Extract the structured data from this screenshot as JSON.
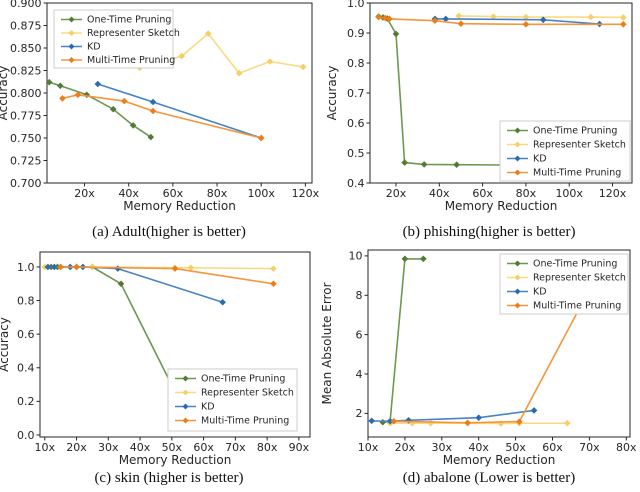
{
  "colors": {
    "green": {
      "line": "#6e9850",
      "marker": "#527c36"
    },
    "yellow": {
      "line": "#fada80",
      "marker": "#f6cf66"
    },
    "blue": {
      "line": "#4684c4",
      "marker": "#2a6cac"
    },
    "orange": {
      "line": "#f5953c",
      "marker": "#ee7d18"
    },
    "spine": "#262626",
    "legend_border": "#cccccc",
    "text": "#262626"
  },
  "legend_labels": [
    "One-Time Pruning",
    "Representer Sketch",
    "KD",
    "Multi-Time Pruning"
  ],
  "chart_data": [
    {
      "id": "a",
      "type": "line",
      "caption": "(a) Adult(higher is better)",
      "xlabel": "Memory Reduction",
      "ylabel": "Accuracy",
      "xlim": [
        3,
        123
      ],
      "ylim": [
        0.7,
        0.9
      ],
      "grid": false,
      "legend_pos": "upper left",
      "xticks": {
        "values": [
          20,
          40,
          60,
          80,
          100,
          120
        ],
        "labels": [
          "20x",
          "40x",
          "60x",
          "80x",
          "100x",
          "120x"
        ]
      },
      "yticks": {
        "values": [
          0.9,
          0.875,
          0.85,
          0.825,
          0.8,
          0.775,
          0.75,
          0.725,
          0.7
        ],
        "labels": [
          "0.900",
          "0.875",
          "0.850",
          "0.825",
          "0.800",
          "0.775",
          "0.750",
          "0.725",
          "0.700"
        ]
      },
      "series": [
        {
          "name": "One-Time Pruning",
          "color": "green",
          "x": [
            4,
            9,
            21,
            33,
            42,
            50
          ],
          "y": [
            0.812,
            0.808,
            0.798,
            0.782,
            0.764,
            0.751
          ]
        },
        {
          "name": "Representer Sketch",
          "color": "yellow",
          "x": [
            45,
            64,
            76,
            90,
            104,
            119
          ],
          "y": [
            0.828,
            0.841,
            0.866,
            0.822,
            0.835,
            0.829
          ]
        },
        {
          "name": "KD",
          "color": "blue",
          "x": [
            26,
            51,
            100
          ],
          "y": [
            0.81,
            0.79,
            0.75
          ]
        },
        {
          "name": "Multi-Time Pruning",
          "color": "orange",
          "x": [
            10,
            17,
            38,
            51,
            100
          ],
          "y": [
            0.794,
            0.798,
            0.791,
            0.78,
            0.75
          ]
        }
      ]
    },
    {
      "id": "b",
      "type": "line",
      "caption": "(b) phishing(higher is better)",
      "xlabel": "Memory Reduction",
      "ylabel": "Accuracy",
      "xlim": [
        8,
        129
      ],
      "ylim": [
        0.4,
        1.0
      ],
      "grid": false,
      "legend_pos": "lower right",
      "xticks": {
        "values": [
          20,
          40,
          60,
          80,
          100,
          120
        ],
        "labels": [
          "20x",
          "40x",
          "60x",
          "80x",
          "100x",
          "120x"
        ]
      },
      "yticks": {
        "values": [
          1.0,
          0.9,
          0.8,
          0.7,
          0.6,
          0.5,
          0.4
        ],
        "labels": [
          "1.0",
          "0.9",
          "0.8",
          "0.7",
          "0.6",
          "0.5",
          "0.4"
        ]
      },
      "series": [
        {
          "name": "One-Time Pruning",
          "color": "green",
          "x": [
            12,
            14,
            16,
            20,
            24,
            33,
            48,
            70
          ],
          "y": [
            0.955,
            0.952,
            0.948,
            0.897,
            0.468,
            0.462,
            0.461,
            0.46
          ]
        },
        {
          "name": "Representer Sketch",
          "color": "yellow",
          "x": [
            49,
            65,
            80,
            110,
            125
          ],
          "y": [
            0.957,
            0.955,
            0.953,
            0.953,
            0.952
          ]
        },
        {
          "name": "KD",
          "color": "blue",
          "x": [
            38,
            43,
            88,
            114
          ],
          "y": [
            0.947,
            0.947,
            0.944,
            0.93
          ]
        },
        {
          "name": "Multi-Time Pruning",
          "color": "orange",
          "x": [
            12,
            15,
            17,
            38,
            50,
            80,
            125
          ],
          "y": [
            0.953,
            0.95,
            0.947,
            0.941,
            0.931,
            0.929,
            0.929
          ]
        }
      ]
    },
    {
      "id": "c",
      "type": "line",
      "caption": "(c) skin (higher is better)",
      "xlabel": "Memory Reduction",
      "ylabel": "Accuracy",
      "xlim": [
        8.5,
        93.5
      ],
      "ylim": [
        -0.012,
        1.089
      ],
      "grid": false,
      "legend_pos": "lower right",
      "xticks": {
        "values": [
          10,
          20,
          30,
          40,
          50,
          60,
          70,
          80,
          90
        ],
        "labels": [
          "10x",
          "20x",
          "30x",
          "40x",
          "50x",
          "60x",
          "70x",
          "80x",
          "90x"
        ]
      },
      "yticks": {
        "values": [
          1.0,
          0.8,
          0.6,
          0.4,
          0.2,
          0.0
        ],
        "labels": [
          "1.0",
          "0.8",
          "0.6",
          "0.4",
          "0.2",
          "0.0"
        ]
      },
      "series": [
        {
          "name": "One-Time Pruning",
          "color": "green",
          "x": [
            12,
            14,
            20,
            25,
            34,
            52
          ],
          "y": [
            1.0,
            1.0,
            1.0,
            1.0,
            0.9,
            0.22
          ]
        },
        {
          "name": "Representer Sketch",
          "color": "yellow",
          "x": [
            10,
            15,
            25,
            51,
            56,
            82
          ],
          "y": [
            1.0,
            1.0,
            1.0,
            0.995,
            0.995,
            0.99
          ]
        },
        {
          "name": "KD",
          "color": "blue",
          "x": [
            11,
            13,
            18,
            22,
            33,
            66
          ],
          "y": [
            1.0,
            1.0,
            1.0,
            1.0,
            0.99,
            0.79
          ]
        },
        {
          "name": "Multi-Time Pruning",
          "color": "orange",
          "x": [
            15,
            20,
            51,
            82
          ],
          "y": [
            1.0,
            1.0,
            0.99,
            0.9
          ]
        }
      ]
    },
    {
      "id": "d",
      "type": "line",
      "caption": "(d) abalone (Lower is better)",
      "xlabel": "Memory Reduction",
      "ylabel": "Mean Absolute Error",
      "xlim": [
        10,
        81
      ],
      "ylim": [
        0.8,
        10.3
      ],
      "grid": false,
      "legend_pos": "upper right",
      "xticks": {
        "values": [
          10,
          20,
          30,
          40,
          50,
          60,
          70,
          80
        ],
        "labels": [
          "10x",
          "20x",
          "30x",
          "40x",
          "50x",
          "60x",
          "70x",
          "80x"
        ]
      },
      "yticks": {
        "values": [
          10,
          8,
          6,
          4,
          2
        ],
        "labels": [
          "10",
          "8",
          "6",
          "4",
          "2"
        ]
      },
      "series": [
        {
          "name": "One-Time Pruning",
          "color": "green",
          "x": [
            14,
            16,
            20,
            25
          ],
          "y": [
            1.55,
            1.6,
            9.85,
            9.85
          ]
        },
        {
          "name": "Representer Sketch",
          "color": "yellow",
          "x": [
            16,
            22,
            27,
            37,
            46,
            51,
            64
          ],
          "y": [
            1.5,
            1.5,
            1.5,
            1.5,
            1.48,
            1.5,
            1.5
          ]
        },
        {
          "name": "KD",
          "color": "blue",
          "x": [
            11,
            16,
            21,
            40,
            55
          ],
          "y": [
            1.62,
            1.6,
            1.65,
            1.78,
            2.15
          ]
        },
        {
          "name": "Multi-Time Pruning",
          "color": "orange",
          "x": [
            17,
            37,
            51,
            72
          ],
          "y": [
            1.6,
            1.52,
            1.58,
            9.0
          ]
        }
      ]
    }
  ]
}
